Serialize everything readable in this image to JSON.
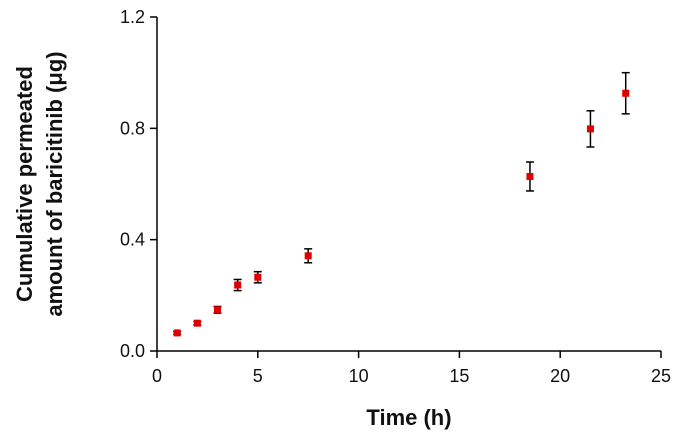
{
  "chart_data": {
    "type": "scatter",
    "xlabel": "Time (h)",
    "ylabel_line1": "Cumulative permeated",
    "ylabel_line2": "amount of baricitinib (μg)",
    "xlim": [
      0,
      25
    ],
    "ylim": [
      0,
      1.2
    ],
    "x_ticks": [
      0,
      5,
      10,
      15,
      20,
      25
    ],
    "x_tick_labels": [
      "0",
      "5",
      "10",
      "15",
      "20",
      "25"
    ],
    "y_ticks": [
      0,
      0.4,
      0.8,
      1.2
    ],
    "y_tick_labels": [
      "0.0",
      "0.4",
      "0.8",
      "1.2"
    ],
    "grid": false,
    "marker_color": "#e00000",
    "series": [
      {
        "x": [
          1,
          2,
          3,
          4,
          5,
          7.5,
          18.5,
          21.5,
          23.25
        ],
        "y": [
          0.065,
          0.1,
          0.148,
          0.237,
          0.265,
          0.342,
          0.627,
          0.798,
          0.926
        ],
        "error": [
          0.005,
          0.006,
          0.012,
          0.02,
          0.02,
          0.025,
          0.052,
          0.065,
          0.074
        ]
      }
    ]
  }
}
